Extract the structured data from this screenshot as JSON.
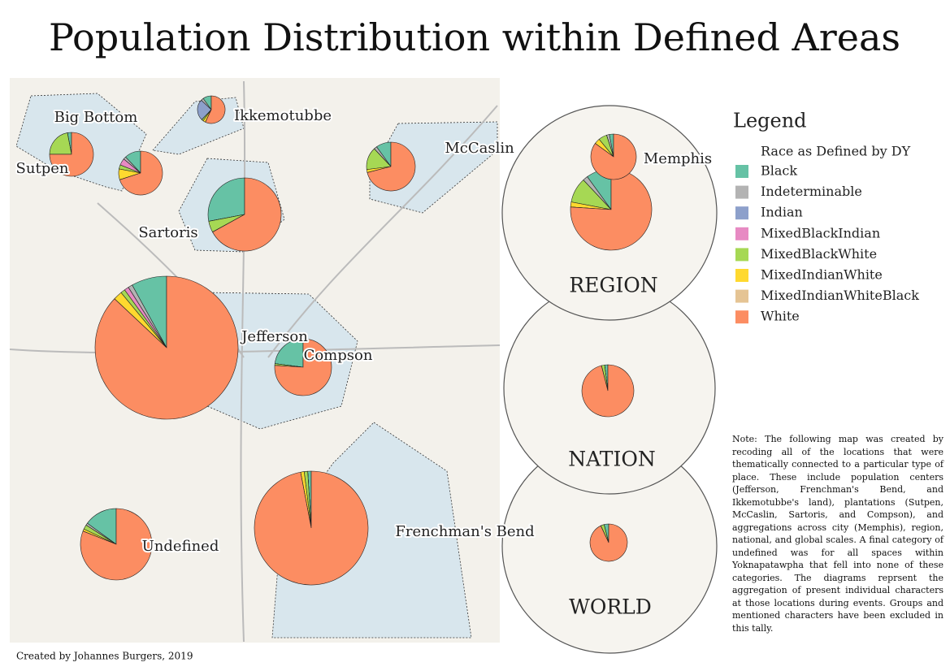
{
  "title": "Population Distribution within Defined Areas",
  "legend": {
    "title": "Legend",
    "subtitle": "Race as Defined by DY",
    "categories": [
      {
        "name": "Black",
        "color": "#66c2a5"
      },
      {
        "name": "Indeterminable",
        "color": "#b3b3b3"
      },
      {
        "name": "Indian",
        "color": "#8da0cb"
      },
      {
        "name": "MixedBlackIndian",
        "color": "#e78ac3"
      },
      {
        "name": "MixedBlackWhite",
        "color": "#a6d854"
      },
      {
        "name": "MixedIndianWhite",
        "color": "#ffd92f"
      },
      {
        "name": "MixedIndianWhiteBlack",
        "color": "#e5c494"
      },
      {
        "name": "White",
        "color": "#fc8d62"
      }
    ]
  },
  "areas": [
    {
      "label": "Big Bottom",
      "values": [
        12,
        2,
        0,
        5,
        3,
        8,
        0,
        70
      ]
    },
    {
      "label": "Ikkemotubbe",
      "values": [
        10,
        3,
        25,
        0,
        2,
        3,
        0,
        57
      ]
    },
    {
      "label": "Sutpen",
      "values": [
        3,
        0,
        0,
        0,
        22,
        0,
        0,
        75
      ]
    },
    {
      "label": "McCaslin",
      "values": [
        10,
        2,
        0,
        0,
        15,
        2,
        0,
        71
      ]
    },
    {
      "label": "Sartoris",
      "values": [
        28,
        0,
        0,
        0,
        5,
        0,
        0,
        67
      ]
    },
    {
      "label": "Jefferson",
      "values": [
        8,
        1,
        0,
        1,
        1,
        2,
        0,
        87
      ]
    },
    {
      "label": "Compson",
      "values": [
        23,
        0,
        0,
        0,
        1,
        0,
        0,
        76
      ]
    },
    {
      "label": "Undefined",
      "values": [
        15,
        1,
        0,
        0,
        2,
        1,
        0,
        81
      ]
    },
    {
      "label": "Frenchman's Bend",
      "values": [
        1,
        0,
        0,
        0,
        1,
        1,
        0,
        97
      ]
    },
    {
      "label": "Memphis",
      "values": [
        3,
        2,
        0,
        0,
        6,
        4,
        0,
        85
      ]
    }
  ],
  "scales": [
    {
      "label": "WORLD",
      "values": [
        4,
        0,
        0,
        0,
        3,
        0,
        0,
        93
      ]
    },
    {
      "label": "NATION",
      "values": [
        2,
        0,
        0,
        0,
        2,
        0,
        0,
        96
      ]
    },
    {
      "label": "REGION",
      "values": [
        10,
        2,
        0,
        0,
        10,
        2,
        0,
        76
      ]
    }
  ],
  "note": "Note: The following map was created by recoding all of the locations that were thematically connected to a particular type of place. These include population centers (Jefferson, Frenchman's Bend, and Ikkemotubbe's land), plantations (Sutpen, McCaslin, Sartoris, and Compson), and aggregations across city (Memphis), region, national, and global scales. A final category of undefined was for all spaces within Yoknapatawpha that fell into none of these categories. The diagrams reprsent the aggregation of present individual characters at those locations during events. Groups and mentioned characters have been excluded in this tally.",
  "credit": "Created by Johannes Burgers, 2019"
}
